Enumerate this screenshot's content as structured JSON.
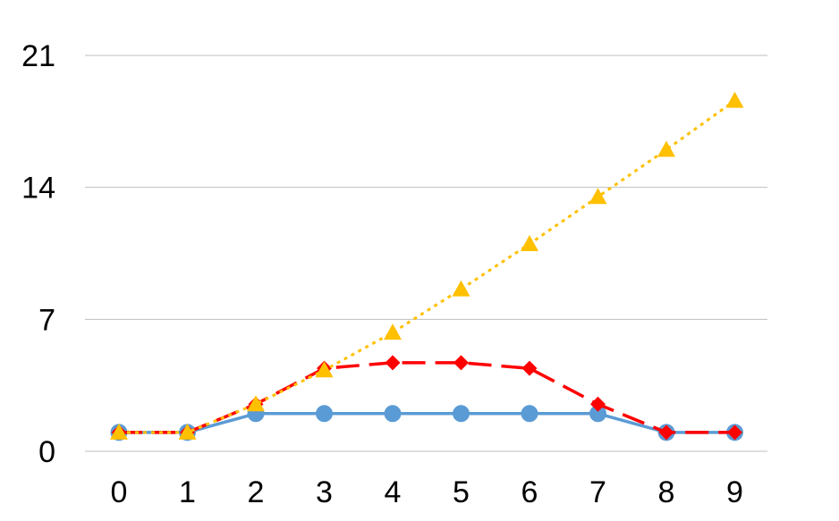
{
  "chart_data": {
    "type": "line",
    "title": "",
    "xlabel": "",
    "ylabel": "",
    "x": [
      0,
      1,
      2,
      3,
      4,
      5,
      6,
      7,
      8,
      9
    ],
    "ylim": [
      0,
      21
    ],
    "yticks": [
      0,
      7,
      14,
      21
    ],
    "grid": "horizontal",
    "legend": "none",
    "series": [
      {
        "values": [
          1,
          1,
          2,
          2,
          2,
          2,
          2,
          2,
          1,
          1
        ],
        "color": "#5b9bd5",
        "line_style": "solid",
        "marker": "circle"
      },
      {
        "values": [
          1,
          1,
          2.5,
          4.4,
          4.7,
          4.7,
          4.4,
          2.5,
          1,
          1
        ],
        "color": "#ff0000",
        "line_style": "dashed",
        "marker": "diamond"
      },
      {
        "values": [
          1,
          1,
          2.5,
          4.3,
          6.3,
          8.6,
          11,
          13.5,
          16,
          18.6
        ],
        "color": "#ffc000",
        "line_style": "dotted",
        "marker": "triangle"
      }
    ]
  }
}
